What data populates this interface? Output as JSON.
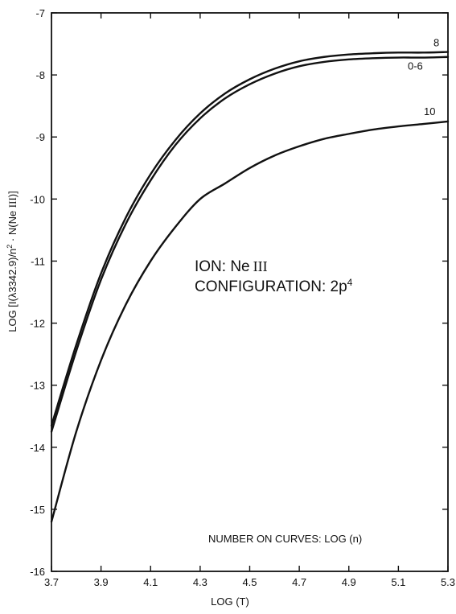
{
  "chart_data": {
    "type": "line",
    "xlabel": "LOG (T)",
    "ylabel": "LOG [I(λ3342.9)/n² · N(Ne III)]",
    "xlim": [
      3.7,
      5.3
    ],
    "ylim": [
      -16,
      -7
    ],
    "x_ticks": [
      "3.7",
      "3.9",
      "4.1",
      "4.3",
      "4.5",
      "4.7",
      "4.9",
      "5.1",
      "5.3"
    ],
    "y_ticks": [
      "-7",
      "-8",
      "-9",
      "-10",
      "-11",
      "-12",
      "-13",
      "-14",
      "-15",
      "-16"
    ],
    "grid": false,
    "x": [
      3.7,
      3.8,
      3.9,
      4.0,
      4.1,
      4.2,
      4.3,
      4.4,
      4.5,
      4.6,
      4.7,
      4.8,
      4.9,
      5.0,
      5.1,
      5.2,
      5.3
    ],
    "series": [
      {
        "name": "8",
        "values": [
          -13.65,
          -12.35,
          -11.2,
          -10.3,
          -9.6,
          -9.05,
          -8.62,
          -8.3,
          -8.07,
          -7.9,
          -7.78,
          -7.71,
          -7.67,
          -7.65,
          -7.64,
          -7.64,
          -7.63
        ]
      },
      {
        "name": "0-6",
        "values": [
          -13.75,
          -12.45,
          -11.3,
          -10.4,
          -9.7,
          -9.13,
          -8.7,
          -8.38,
          -8.15,
          -7.98,
          -7.86,
          -7.79,
          -7.75,
          -7.73,
          -7.72,
          -7.72,
          -7.71
        ]
      },
      {
        "name": "10",
        "values": [
          -15.2,
          -13.75,
          -12.6,
          -11.7,
          -11.0,
          -10.45,
          -10.0,
          -9.75,
          -9.5,
          -9.3,
          -9.15,
          -9.03,
          -8.95,
          -8.88,
          -8.83,
          -8.79,
          -8.75
        ]
      }
    ],
    "annotations": {
      "ion_prefix": "ION: Ne",
      "ion_roman": "III",
      "config_prefix": "CONFIGURATION: 2p",
      "config_sup": "4",
      "curves_note": "NUMBER ON CURVES: LOG (n)"
    }
  }
}
